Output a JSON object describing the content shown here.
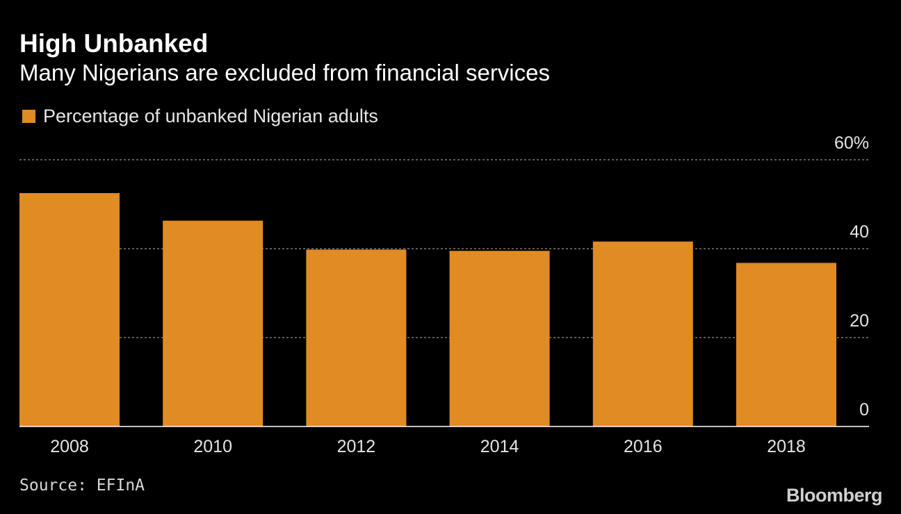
{
  "header": {
    "title": "High Unbanked",
    "subtitle": "Many Nigerians are excluded from financial services"
  },
  "legend": {
    "label": "Percentage of unbanked Nigerian adults"
  },
  "footer": {
    "source": "Source: EFInA",
    "logo": "Bloomberg"
  },
  "colors": {
    "bar": "#e08b24",
    "background": "#000000",
    "grid": "#7a7a7a",
    "axis": "#ffffff",
    "text": "#ffffff"
  },
  "chart_data": {
    "type": "bar",
    "title": "High Unbanked",
    "subtitle": "Many Nigerians are excluded from financial services",
    "categories": [
      "2008",
      "2010",
      "2012",
      "2014",
      "2016",
      "2018"
    ],
    "series": [
      {
        "name": "Percentage of unbanked Nigerian adults",
        "values": [
          52.5,
          46.3,
          39.8,
          39.5,
          41.6,
          36.8
        ]
      }
    ],
    "ylim": [
      0,
      60
    ],
    "yticks": [
      0,
      20,
      40,
      60
    ],
    "ytick_labels": [
      "0",
      "20",
      "40",
      "60%"
    ],
    "y_axis_position": "right",
    "grid": true,
    "legend_position": "top-left"
  }
}
